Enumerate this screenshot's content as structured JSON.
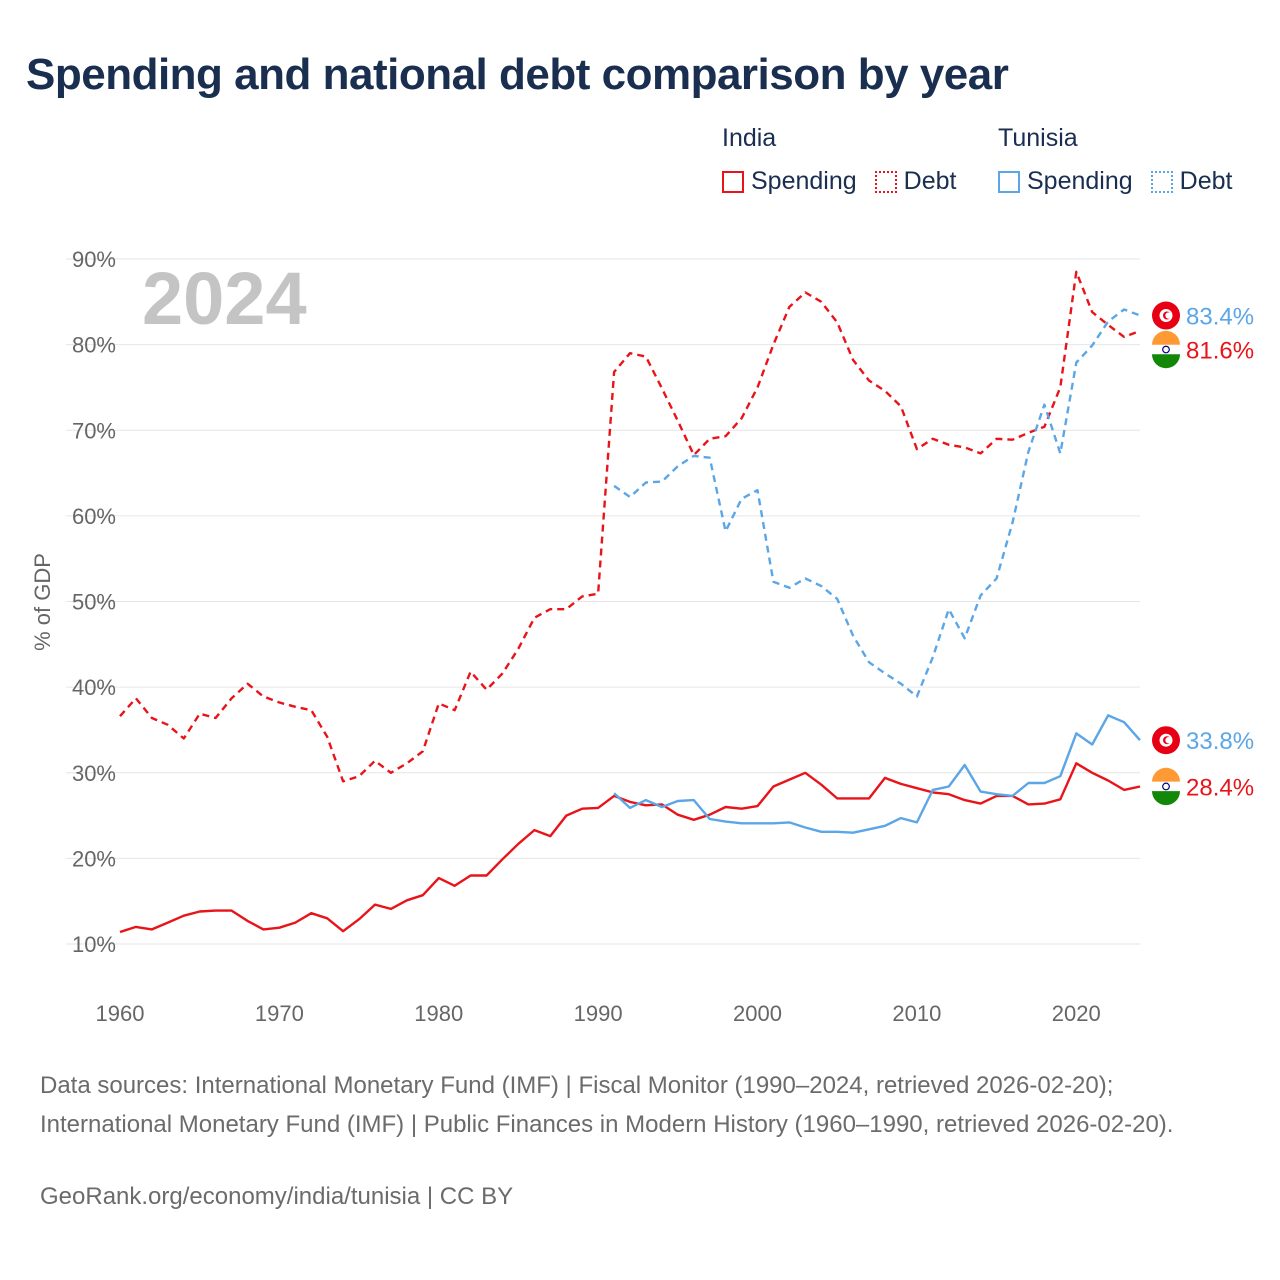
{
  "title": "Spending and national debt comparison by year",
  "legend": {
    "groups": [
      {
        "country": "India",
        "color": "#e8141a",
        "spending_label": "Spending",
        "debt_label": "Debt"
      },
      {
        "country": "Tunisia",
        "color": "#5ba6e6",
        "spending_label": "Spending",
        "debt_label": "Debt"
      }
    ]
  },
  "sources": "Data sources: International Monetary Fund (IMF) | Fiscal Monitor (1990–2024, retrieved 2026-02-20); International Monetary Fund (IMF) | Public Finances in Modern History (1960–1990, retrieved 2026-02-20).",
  "footer": "GeoRank.org/economy/india/tunisia | CC BY",
  "chart_data": {
    "type": "line",
    "title": "Spending and national debt comparison by year",
    "year_label": "2024",
    "ylabel": "% of GDP",
    "xlabel": "",
    "xlim": [
      1960,
      2024
    ],
    "ylim": [
      10,
      90
    ],
    "x_ticks": [
      1960,
      1970,
      1980,
      1990,
      2000,
      2010,
      2020
    ],
    "y_ticks": [
      10,
      20,
      30,
      40,
      50,
      60,
      70,
      80,
      90
    ],
    "y_tick_suffix": "%",
    "grid": true,
    "end_labels": [
      {
        "country": "Tunisia",
        "text": "83.4%",
        "value": 83.4,
        "color": "#5ba6e6",
        "flag": "tunisia"
      },
      {
        "country": "India",
        "text": "81.6%",
        "value": 81.6,
        "color": "#e8141a",
        "flag": "india"
      },
      {
        "country": "Tunisia",
        "text": "33.8%",
        "value": 33.8,
        "color": "#5ba6e6",
        "flag": "tunisia"
      },
      {
        "country": "India",
        "text": "28.4%",
        "value": 28.4,
        "color": "#e8141a",
        "flag": "india"
      }
    ],
    "series": [
      {
        "name": "India Debt",
        "country": "India",
        "metric": "Debt",
        "color": "#e8141a",
        "dashed": true,
        "x": [
          1960,
          1961,
          1962,
          1963,
          1964,
          1965,
          1966,
          1967,
          1968,
          1969,
          1970,
          1971,
          1972,
          1973,
          1974,
          1975,
          1976,
          1977,
          1978,
          1979,
          1980,
          1981,
          1982,
          1983,
          1984,
          1985,
          1986,
          1987,
          1988,
          1989,
          1990,
          1991,
          1992,
          1993,
          1994,
          1995,
          1996,
          1997,
          1998,
          1999,
          2000,
          2001,
          2002,
          2003,
          2004,
          2005,
          2006,
          2007,
          2008,
          2009,
          2010,
          2011,
          2012,
          2013,
          2014,
          2015,
          2016,
          2017,
          2018,
          2019,
          2020,
          2021,
          2022,
          2023,
          2024
        ],
        "values": [
          36.6,
          38.7,
          36.4,
          35.6,
          34.0,
          36.9,
          36.4,
          38.7,
          40.4,
          38.9,
          38.2,
          37.7,
          37.3,
          34.2,
          29.0,
          29.6,
          31.4,
          30.0,
          31.1,
          32.5,
          38.1,
          37.3,
          41.8,
          39.7,
          41.6,
          44.5,
          48.1,
          49.1,
          49.1,
          50.6,
          50.9,
          76.8,
          79.0,
          78.6,
          74.9,
          71.1,
          67.1,
          69.0,
          69.3,
          71.4,
          75.0,
          80.0,
          84.4,
          86.1,
          85.0,
          82.6,
          78.2,
          75.8,
          74.6,
          72.8,
          67.8,
          69.0,
          68.3,
          68.0,
          67.3,
          69.0,
          68.9,
          69.7,
          70.4,
          75.0,
          88.5,
          83.8,
          82.3,
          80.9,
          81.6
        ]
      },
      {
        "name": "Tunisia Debt",
        "country": "Tunisia",
        "metric": "Debt",
        "color": "#5ba6e6",
        "dashed": true,
        "x": [
          1991,
          1992,
          1993,
          1994,
          1995,
          1996,
          1997,
          1998,
          1999,
          2000,
          2001,
          2002,
          2003,
          2004,
          2005,
          2006,
          2007,
          2008,
          2009,
          2010,
          2011,
          2012,
          2013,
          2014,
          2015,
          2016,
          2017,
          2018,
          2019,
          2020,
          2021,
          2022,
          2023,
          2024
        ],
        "values": [
          63.5,
          62.2,
          63.9,
          64.0,
          65.8,
          67.0,
          66.8,
          58.2,
          62.0,
          63.0,
          52.3,
          51.6,
          52.7,
          51.8,
          50.3,
          46.0,
          42.9,
          41.6,
          40.4,
          38.9,
          43.5,
          49.1,
          45.7,
          50.7,
          52.7,
          59.2,
          67.5,
          73.0,
          67.3,
          77.9,
          79.9,
          82.7,
          84.1,
          83.4
        ]
      },
      {
        "name": "India Spending",
        "country": "India",
        "metric": "Spending",
        "color": "#e8141a",
        "dashed": false,
        "x": [
          1960,
          1961,
          1962,
          1963,
          1964,
          1965,
          1966,
          1967,
          1968,
          1969,
          1970,
          1971,
          1972,
          1973,
          1974,
          1975,
          1976,
          1977,
          1978,
          1979,
          1980,
          1981,
          1982,
          1983,
          1984,
          1985,
          1986,
          1987,
          1988,
          1989,
          1990,
          1991,
          1992,
          1993,
          1994,
          1995,
          1996,
          1997,
          1998,
          1999,
          2000,
          2001,
          2002,
          2003,
          2004,
          2005,
          2006,
          2007,
          2008,
          2009,
          2010,
          2011,
          2012,
          2013,
          2014,
          2015,
          2016,
          2017,
          2018,
          2019,
          2020,
          2021,
          2022,
          2023,
          2024
        ],
        "values": [
          11.4,
          12.0,
          11.7,
          12.5,
          13.3,
          13.8,
          13.9,
          13.9,
          12.7,
          11.7,
          11.9,
          12.5,
          13.6,
          13.0,
          11.5,
          12.9,
          14.6,
          14.1,
          15.1,
          15.7,
          17.7,
          16.8,
          18.0,
          18.0,
          19.9,
          21.7,
          23.3,
          22.6,
          25.0,
          25.8,
          25.9,
          27.3,
          26.6,
          26.2,
          26.3,
          25.1,
          24.5,
          25.1,
          26.0,
          25.8,
          26.1,
          28.4,
          29.2,
          30.0,
          28.6,
          27.0,
          27.0,
          27.0,
          29.4,
          28.7,
          28.2,
          27.7,
          27.5,
          26.8,
          26.4,
          27.3,
          27.3,
          26.3,
          26.4,
          26.9,
          31.1,
          30.0,
          29.1,
          28.0,
          28.4
        ]
      },
      {
        "name": "Tunisia Spending",
        "country": "Tunisia",
        "metric": "Spending",
        "color": "#5ba6e6",
        "dashed": false,
        "x": [
          1991,
          1992,
          1993,
          1994,
          1995,
          1996,
          1997,
          1998,
          1999,
          2000,
          2001,
          2002,
          2003,
          2004,
          2005,
          2006,
          2007,
          2008,
          2009,
          2010,
          2011,
          2012,
          2013,
          2014,
          2015,
          2016,
          2017,
          2018,
          2019,
          2020,
          2021,
          2022,
          2023,
          2024
        ],
        "values": [
          27.6,
          25.9,
          26.8,
          26.0,
          26.7,
          26.8,
          24.6,
          24.3,
          24.1,
          24.1,
          24.1,
          24.2,
          23.6,
          23.1,
          23.1,
          23.0,
          23.4,
          23.8,
          24.7,
          24.2,
          28.0,
          28.4,
          30.9,
          27.8,
          27.5,
          27.3,
          28.8,
          28.8,
          29.6,
          34.6,
          33.3,
          36.7,
          35.9,
          33.8
        ]
      }
    ]
  }
}
